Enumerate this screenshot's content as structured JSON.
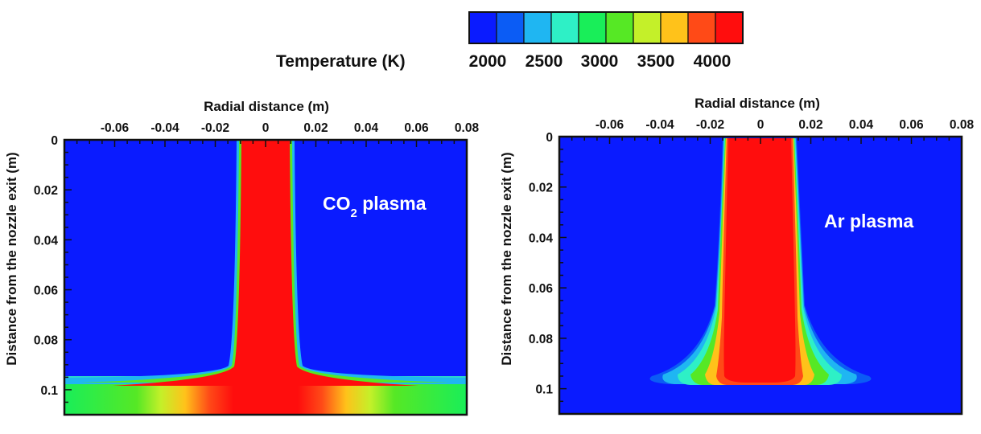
{
  "colorbar": {
    "title": "Temperature (K)",
    "tick_labels": [
      "2000",
      "2500",
      "3000",
      "3500",
      "4000"
    ],
    "colors": [
      "#0a1bff",
      "#0b5cf5",
      "#1fb6f2",
      "#2ef0c6",
      "#19ee59",
      "#56e825",
      "#c4f029",
      "#ffc21a",
      "#ff4a17",
      "#ff0d0d"
    ]
  },
  "chart_data": [
    {
      "type": "heatmap",
      "title": "",
      "annotation": {
        "text": "CO",
        "subscript": "2",
        "suffix": " plasma"
      },
      "xlabel": "Radial distance (m)",
      "ylabel": "Distance from the nozzle exit (m)",
      "x_tick_labels": [
        "-0.06",
        "-0.04",
        "-0.02",
        "0",
        "0.02",
        "0.04",
        "0.06",
        "0.08"
      ],
      "y_tick_labels": [
        "0",
        "0.02",
        "0.04",
        "0.06",
        "0.08",
        "0.1"
      ],
      "xlim": [
        -0.08,
        0.08
      ],
      "ylim": [
        0.11,
        0
      ],
      "background_temperature_K": 2000,
      "core": {
        "half_width_m": 0.012,
        "temperature_K": 4000,
        "to_axial_m": 0.095
      },
      "spread_region": {
        "from_axial_m": 0.095,
        "to_axial_m": 0.11,
        "edge_temperature_K": 3000,
        "center_temperature_K": 4000
      }
    },
    {
      "type": "heatmap",
      "title": "",
      "annotation": {
        "text": "Ar plasma"
      },
      "xlabel": "Radial distance (m)",
      "ylabel": "Distance from the nozzle exit (m)",
      "x_tick_labels": [
        "-0.06",
        "-0.04",
        "-0.02",
        "0",
        "0.02",
        "0.04",
        "0.06",
        "0.08"
      ],
      "y_tick_labels": [
        "0",
        "0.02",
        "0.04",
        "0.06",
        "0.08",
        "0.1"
      ],
      "xlim": [
        -0.08,
        0.08
      ],
      "ylim": [
        0.11,
        0
      ],
      "background_temperature_K": 2000,
      "core": {
        "half_width_m": 0.012,
        "temperature_K": 4000,
        "to_axial_m": 0.098
      },
      "halo_half_width_m": 0.04
    }
  ]
}
